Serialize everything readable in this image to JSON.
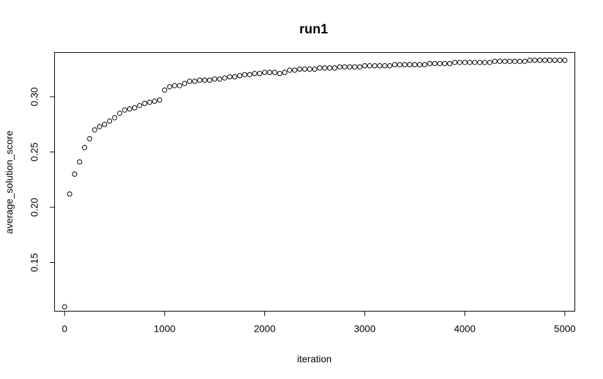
{
  "chart_data": {
    "type": "scatter",
    "title": "run1",
    "xlabel": "iteration",
    "ylabel": "average_solution_score",
    "xlim": [
      -100,
      5100
    ],
    "ylim": [
      0.106,
      0.34
    ],
    "grid": false,
    "marker": "open-circle",
    "x_ticks": [
      {
        "value": 0,
        "label": "0"
      },
      {
        "value": 1000,
        "label": "1000"
      },
      {
        "value": 2000,
        "label": "2000"
      },
      {
        "value": 3000,
        "label": "3000"
      },
      {
        "value": 4000,
        "label": "4000"
      },
      {
        "value": 5000,
        "label": "5000"
      }
    ],
    "y_ticks": [
      {
        "value": 0.15,
        "label": "0.15"
      },
      {
        "value": 0.2,
        "label": "0.20"
      },
      {
        "value": 0.25,
        "label": "0.25"
      },
      {
        "value": 0.3,
        "label": "0.30"
      }
    ],
    "x": [
      0,
      50,
      100,
      150,
      200,
      250,
      300,
      350,
      400,
      450,
      500,
      550,
      600,
      650,
      700,
      750,
      800,
      850,
      900,
      950,
      1000,
      1050,
      1100,
      1150,
      1200,
      1250,
      1300,
      1350,
      1400,
      1450,
      1500,
      1550,
      1600,
      1650,
      1700,
      1750,
      1800,
      1850,
      1900,
      1950,
      2000,
      2050,
      2100,
      2150,
      2200,
      2250,
      2300,
      2350,
      2400,
      2450,
      2500,
      2550,
      2600,
      2650,
      2700,
      2750,
      2800,
      2850,
      2900,
      2950,
      3000,
      3050,
      3100,
      3150,
      3200,
      3250,
      3300,
      3350,
      3400,
      3450,
      3500,
      3550,
      3600,
      3650,
      3700,
      3750,
      3800,
      3850,
      3900,
      3950,
      4000,
      4050,
      4100,
      4150,
      4200,
      4250,
      4300,
      4350,
      4400,
      4450,
      4500,
      4550,
      4600,
      4650,
      4700,
      4750,
      4800,
      4850,
      4900,
      4950,
      5000
    ],
    "y": [
      0.11,
      0.212,
      0.23,
      0.241,
      0.254,
      0.262,
      0.27,
      0.273,
      0.275,
      0.278,
      0.281,
      0.285,
      0.288,
      0.289,
      0.29,
      0.292,
      0.294,
      0.295,
      0.296,
      0.297,
      0.306,
      0.309,
      0.31,
      0.31,
      0.312,
      0.314,
      0.314,
      0.315,
      0.315,
      0.315,
      0.316,
      0.316,
      0.317,
      0.318,
      0.318,
      0.319,
      0.32,
      0.32,
      0.321,
      0.321,
      0.322,
      0.322,
      0.322,
      0.321,
      0.322,
      0.324,
      0.324,
      0.325,
      0.325,
      0.325,
      0.325,
      0.326,
      0.326,
      0.326,
      0.326,
      0.327,
      0.327,
      0.327,
      0.327,
      0.327,
      0.328,
      0.328,
      0.328,
      0.328,
      0.328,
      0.328,
      0.329,
      0.329,
      0.329,
      0.329,
      0.329,
      0.329,
      0.329,
      0.33,
      0.33,
      0.33,
      0.33,
      0.33,
      0.331,
      0.331,
      0.331,
      0.331,
      0.331,
      0.331,
      0.331,
      0.331,
      0.332,
      0.332,
      0.332,
      0.332,
      0.332,
      0.332,
      0.332,
      0.333,
      0.333,
      0.333,
      0.333,
      0.333,
      0.333,
      0.333,
      0.333
    ]
  }
}
